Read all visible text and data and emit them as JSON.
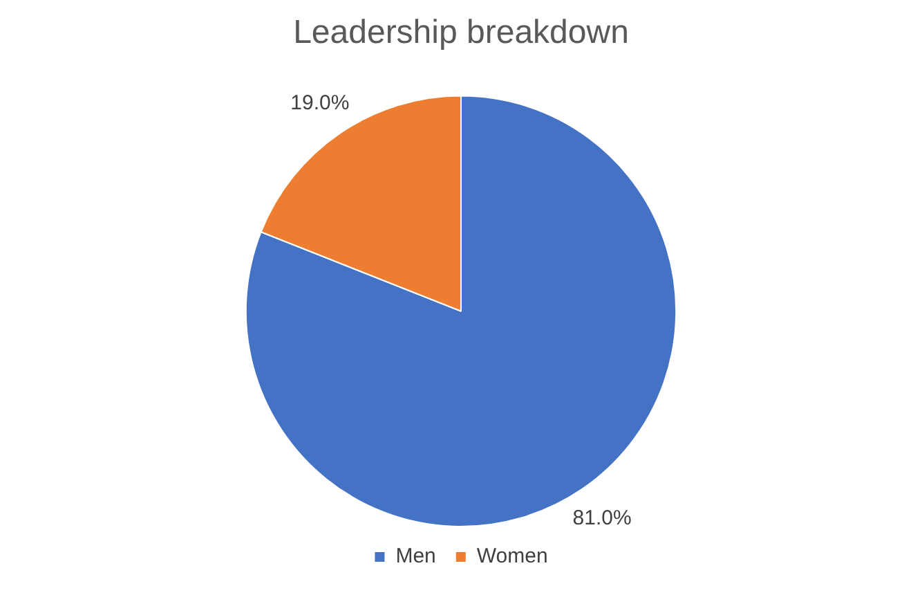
{
  "chart_data": {
    "type": "pie",
    "title": "Leadership breakdown",
    "categories": [
      "Men",
      "Women"
    ],
    "values": [
      81.0,
      19.0
    ],
    "colors": [
      "#4472c4",
      "#ed7d31"
    ],
    "value_labels": [
      "81.0%",
      "19.0%"
    ],
    "legend": "bottom"
  }
}
